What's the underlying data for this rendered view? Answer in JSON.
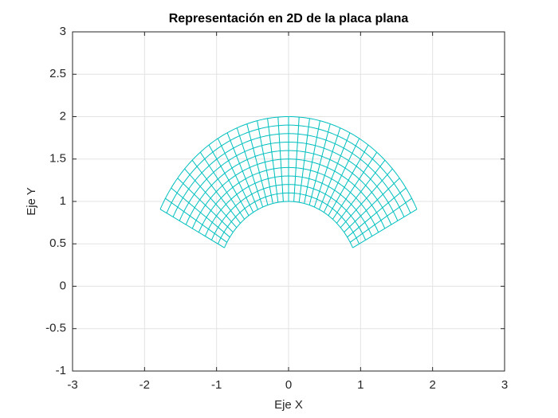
{
  "chart_data": {
    "type": "mesh",
    "title": "Representación en 2D de la placa plana",
    "x_label": "Eje X",
    "y_label": "Eje Y",
    "mesh": {
      "r": [
        1,
        2
      ],
      "theta_deg": [
        27,
        153
      ],
      "n_r": 10,
      "n_theta": 30
    },
    "color": "#00bfbf",
    "xlim": [
      -3,
      3
    ],
    "xticks": [
      -3,
      -2,
      -1,
      0,
      1,
      2,
      3
    ],
    "ylim": [
      -1,
      3
    ],
    "yticks": [
      -1,
      -0.5,
      0,
      0.5,
      1,
      1.5,
      2,
      2.5,
      3
    ],
    "grid": true
  }
}
